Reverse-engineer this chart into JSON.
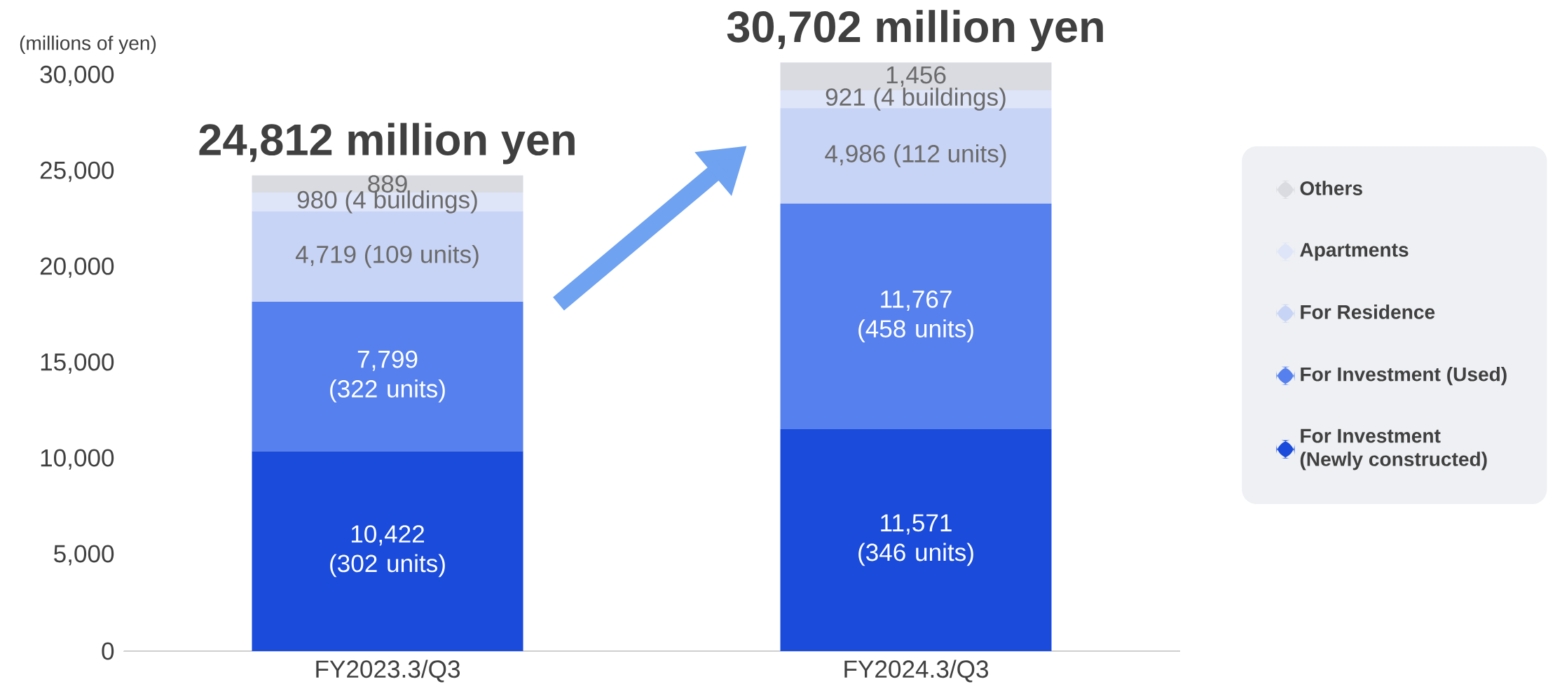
{
  "chart_data": {
    "type": "bar",
    "stacked": true,
    "ylabel": "(millions of yen)",
    "categories": [
      "FY2023.3/Q3",
      "FY2024.3/Q3"
    ],
    "series": [
      {
        "name": "For Investment\n(Newly constructed)",
        "color": "#1a4bdb",
        "values": [
          10422,
          11571
        ],
        "value_labels": [
          "10,422 (302 units)",
          "11,571 (346 units)"
        ]
      },
      {
        "name": "For Investment (Used)",
        "color": "#5680ee",
        "values": [
          7799,
          11767
        ],
        "value_labels": [
          "7,799 (322 units)",
          "11,767 (458 units)"
        ]
      },
      {
        "name": "For Residence",
        "color": "#c8d4f5",
        "values": [
          4719,
          4986
        ],
        "value_labels": [
          "4,719 (109 units)",
          "4,986 (112 units)"
        ]
      },
      {
        "name": "Apartments",
        "color": "#dfe5f8",
        "values": [
          980,
          921
        ],
        "value_labels": [
          "980 (4 buildings)",
          "921 (4 buildings)"
        ]
      },
      {
        "name": "Others",
        "color": "#d9dbe0",
        "values": [
          889,
          1456
        ],
        "value_labels": [
          "889",
          "1,456"
        ]
      }
    ],
    "totals": [
      "24,812 million yen",
      "30,702 million yen"
    ],
    "ylim": [
      0,
      31000
    ],
    "yticks": [
      {
        "value": 0,
        "label": "0"
      },
      {
        "value": 5000,
        "label": "5,000"
      },
      {
        "value": 10000,
        "label": "10,000"
      },
      {
        "value": 15000,
        "label": "15,000"
      },
      {
        "value": 20000,
        "label": "20,000"
      },
      {
        "value": 25000,
        "label": "25,000"
      },
      {
        "value": 30000,
        "label": "30,000"
      }
    ],
    "legend": "right",
    "grid": false
  }
}
